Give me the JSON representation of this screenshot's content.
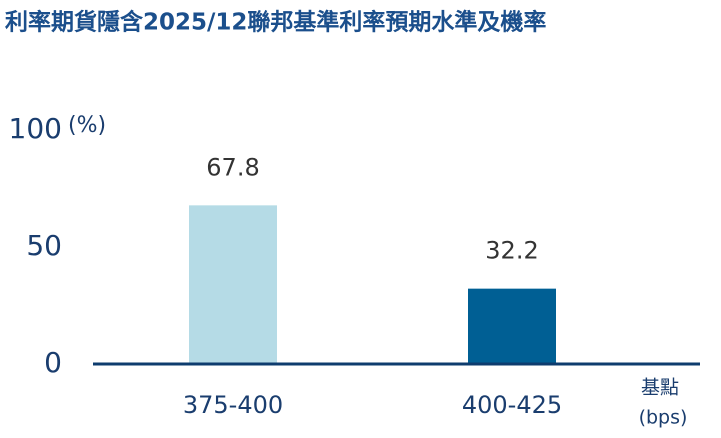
{
  "chart_data": {
    "type": "bar",
    "title": "利率期貨隱含2025/12聯邦基準利率預期水準及機率",
    "y_unit": "(%)",
    "x_unit": [
      "基點",
      "(bps)"
    ],
    "categories": [
      "375-400",
      "400-425"
    ],
    "values": [
      67.8,
      32.2
    ],
    "colors": [
      "#b5dbe6",
      "#005f94"
    ],
    "ylim": [
      0,
      100
    ],
    "yticks": [
      0,
      50,
      100
    ],
    "grid": false
  }
}
